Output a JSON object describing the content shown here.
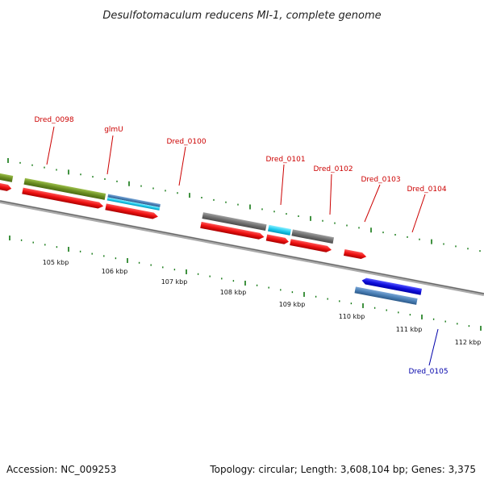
{
  "header": {
    "title": "Desulfotomaculum reducens MI-1, complete genome"
  },
  "footer": {
    "accession": "Accession: NC_009253",
    "topology": "Topology: circular; Length: 3,608,104 bp; Genes: 3,375"
  },
  "colors": {
    "cds_red": "#ee1111",
    "steel_blue": "#4a7fb5",
    "olive_green": "#6b8e23",
    "cyan": "#22ccee",
    "dark_gray": "#707070",
    "blue": "#1010dd",
    "backbone": "#888888",
    "tick_green": "#117711",
    "label_red": "#cc0000",
    "label_blue": "#0000aa"
  },
  "gene_labels": [
    {
      "text": "Dred_0098",
      "color": "red"
    },
    {
      "text": "glmU",
      "color": "red"
    },
    {
      "text": "Dred_0100",
      "color": "red"
    },
    {
      "text": "Dred_0101",
      "color": "red"
    },
    {
      "text": "Dred_0102",
      "color": "red"
    },
    {
      "text": "Dred_0103",
      "color": "red"
    },
    {
      "text": "Dred_0104",
      "color": "red"
    },
    {
      "text": "Dred_0105",
      "color": "blue"
    }
  ],
  "kbp_labels": [
    "105 kbp",
    "106 kbp",
    "107 kbp",
    "108 kbp",
    "109 kbp",
    "110 kbp",
    "111 kbp",
    "112 kbp"
  ]
}
